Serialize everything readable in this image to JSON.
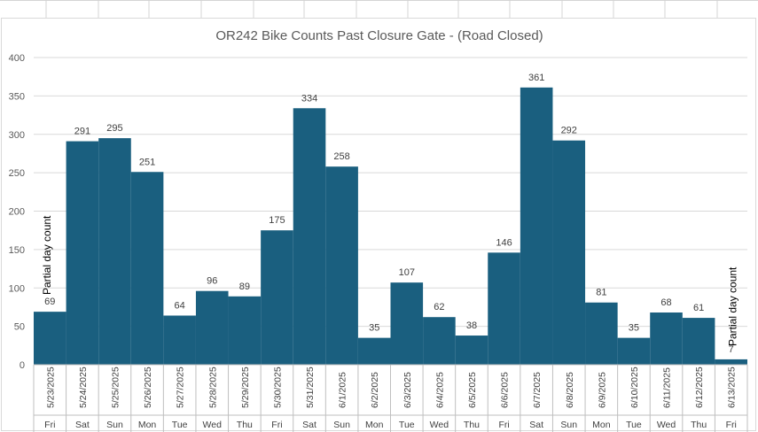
{
  "chart_data": {
    "type": "bar",
    "title": "OR242 Bike Counts Past Closure Gate - (Road Closed)",
    "categories": [
      "5/23/2025",
      "5/24/2025",
      "5/25/2025",
      "5/26/2025",
      "5/27/2025",
      "5/28/2025",
      "5/29/2025",
      "5/30/2025",
      "5/31/2025",
      "6/1/2025",
      "6/2/2025",
      "6/3/2025",
      "6/4/2025",
      "6/5/2025",
      "6/6/2025",
      "6/7/2025",
      "6/8/2025",
      "6/9/2025",
      "6/10/2025",
      "6/11/2025",
      "6/12/2025",
      "6/13/2025"
    ],
    "weekdays": [
      "Fri",
      "Sat",
      "Sun",
      "Mon",
      "Tue",
      "Wed",
      "Thu",
      "Fri",
      "Sat",
      "Sun",
      "Mon",
      "Tue",
      "Wed",
      "Thu",
      "Fri",
      "Sat",
      "Sun",
      "Mon",
      "Tue",
      "Wed",
      "Thu",
      "Fri"
    ],
    "values": [
      69,
      291,
      295,
      251,
      64,
      96,
      89,
      175,
      334,
      258,
      35,
      107,
      62,
      38,
      146,
      361,
      292,
      81,
      35,
      68,
      61,
      7
    ],
    "ylim": [
      0,
      400
    ],
    "yticks": [
      0,
      50,
      100,
      150,
      200,
      250,
      300,
      350,
      400
    ],
    "grid": true,
    "bar_color": "#1a5f7f",
    "annotations": [
      {
        "category_index": 0,
        "text": "Partial day count"
      },
      {
        "category_index": 21,
        "text": "Partial day count"
      }
    ]
  }
}
